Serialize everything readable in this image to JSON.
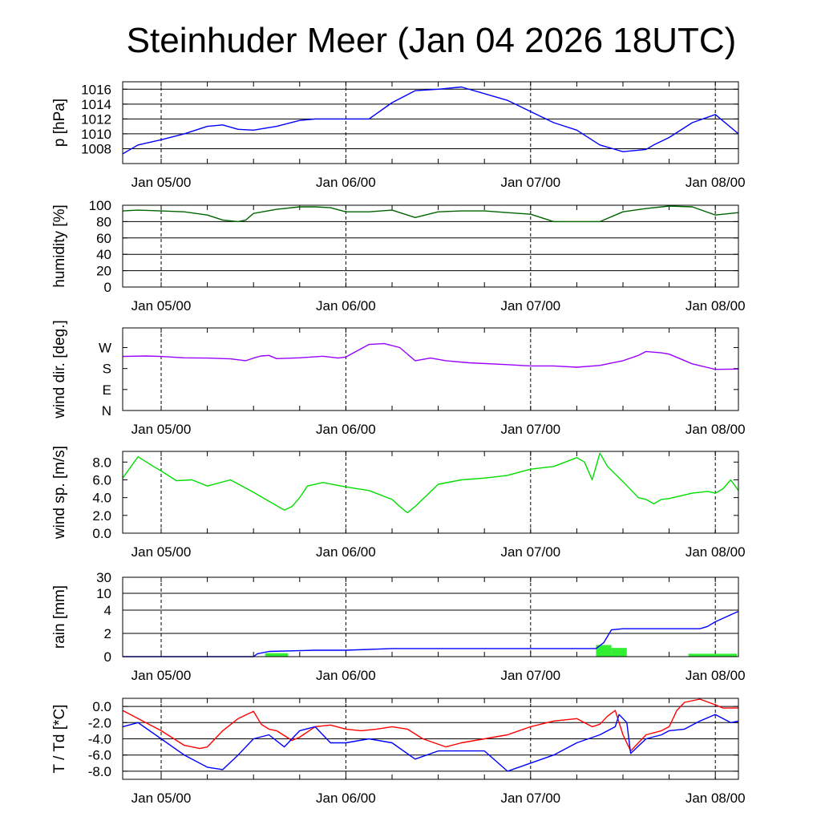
{
  "title": "Steinhuder Meer (Jan 04 2026 18UTC)",
  "x_tick_labels": [
    "Jan 05/00",
    "Jan 06/00",
    "Jan 07/00",
    "Jan 08/00"
  ],
  "chart_data": [
    {
      "type": "line",
      "ylabel": "p [hPa]",
      "x_range_hours": [
        -5,
        75
      ],
      "ylim": [
        1006,
        1017
      ],
      "yticks": [
        1008,
        1010,
        1012,
        1014,
        1016
      ],
      "ytick_labels": [
        "1008",
        "1010",
        "1012",
        "1014",
        "1016"
      ],
      "grid": true,
      "series": [
        {
          "color": "#0000ff",
          "x": [
            -5,
            -3,
            0,
            3,
            6,
            8,
            10,
            12,
            15,
            18,
            20,
            24,
            27,
            30,
            33,
            36,
            39,
            42,
            45,
            48,
            51,
            54,
            57,
            60,
            63,
            64,
            66,
            69,
            72,
            75
          ],
          "y": [
            1007.3,
            1008.5,
            1009.2,
            1010.0,
            1011.0,
            1011.2,
            1010.6,
            1010.5,
            1011.0,
            1011.8,
            1012.0,
            1012.0,
            1012.0,
            1014.2,
            1015.8,
            1016.0,
            1016.3,
            1015.4,
            1014.5,
            1013.0,
            1011.5,
            1010.5,
            1008.5,
            1007.6,
            1007.9,
            1008.5,
            1009.5,
            1011.5,
            1012.6,
            1010.0
          ]
        }
      ]
    },
    {
      "type": "line",
      "ylabel": "humidity [%]",
      "x_range_hours": [
        -5,
        75
      ],
      "ylim": [
        0,
        100
      ],
      "yticks": [
        0,
        20,
        40,
        60,
        80,
        100
      ],
      "ytick_labels": [
        "0",
        "20",
        "40",
        "60",
        "80",
        "100"
      ],
      "grid": true,
      "series": [
        {
          "color": "#006400",
          "x": [
            -5,
            -3,
            0,
            3,
            6,
            8,
            10,
            11,
            12,
            15,
            18,
            20,
            22,
            24,
            27,
            30,
            33,
            36,
            39,
            42,
            45,
            48,
            51,
            54,
            57,
            60,
            63,
            66,
            69,
            72,
            75
          ],
          "y": [
            93,
            94,
            93,
            92,
            88,
            82,
            80,
            82,
            90,
            95,
            98,
            98,
            97,
            92,
            92,
            94,
            85,
            92,
            93,
            93,
            91,
            89,
            80,
            80,
            80,
            92,
            96,
            99,
            98,
            88,
            91
          ]
        }
      ]
    },
    {
      "type": "line",
      "ylabel": "wind dir. [deg.]",
      "x_range_hours": [
        -5,
        75
      ],
      "ylim": [
        0,
        315
      ],
      "yticks": [
        0,
        80,
        160,
        240
      ],
      "ytick_labels": [
        "N",
        "E",
        "S",
        "W"
      ],
      "grid": false,
      "series": [
        {
          "color": "#9900ff",
          "x": [
            -5,
            -2,
            0,
            3,
            6,
            9,
            11,
            12,
            13,
            14,
            15,
            18,
            21,
            23,
            24,
            27,
            29,
            31,
            33,
            35,
            37,
            40,
            45,
            48,
            51,
            54,
            57,
            60,
            62,
            63,
            65,
            66,
            69,
            72,
            75
          ],
          "y": [
            206,
            208,
            206,
            201,
            200,
            197,
            190,
            200,
            208,
            210,
            198,
            201,
            207,
            200,
            204,
            252,
            255,
            240,
            190,
            200,
            190,
            182,
            175,
            170,
            170,
            165,
            172,
            190,
            210,
            225,
            220,
            215,
            178,
            157,
            158
          ]
        }
      ]
    },
    {
      "type": "line",
      "ylabel": "wind sp. [m/s]",
      "x_range_hours": [
        -5,
        75
      ],
      "ylim": [
        0,
        9.2
      ],
      "yticks": [
        0,
        2,
        4,
        6,
        8
      ],
      "ytick_labels": [
        "0.0",
        "2.0",
        "4.0",
        "6.0",
        "8.0"
      ],
      "grid": false,
      "series": [
        {
          "color": "#00dd00",
          "x": [
            -5,
            -3,
            -1,
            0,
            2,
            4,
            6,
            9,
            12,
            14,
            16,
            17,
            18,
            19,
            21,
            24,
            27,
            30,
            31,
            32,
            33,
            36,
            39,
            42,
            45,
            48,
            51,
            54,
            55,
            56,
            57,
            58,
            60,
            62,
            63,
            64,
            65,
            66,
            69,
            71,
            72,
            73,
            74,
            75
          ],
          "y": [
            6.2,
            8.6,
            7.5,
            7.0,
            5.9,
            6.0,
            5.3,
            6.0,
            4.6,
            3.6,
            2.6,
            3.0,
            4.0,
            5.3,
            5.7,
            5.2,
            4.8,
            3.8,
            3.0,
            2.3,
            3.0,
            5.5,
            6.0,
            6.2,
            6.5,
            7.2,
            7.5,
            8.5,
            8.0,
            6.0,
            9.0,
            7.5,
            5.8,
            4.0,
            3.8,
            3.3,
            3.8,
            3.9,
            4.5,
            4.7,
            4.5,
            5.0,
            6.0,
            4.8
          ]
        }
      ]
    },
    {
      "type": "line",
      "ylabel": "rain [mm]",
      "x_range_hours": [
        -5,
        75
      ],
      "yticks": [
        0,
        2,
        4,
        10,
        30
      ],
      "ytick_labels": [
        "0",
        "2",
        "4",
        "10",
        "30"
      ],
      "grid": true,
      "series": [
        {
          "color": "#0000ff",
          "x": [
            -5,
            12,
            12.5,
            14,
            20,
            24,
            30,
            40,
            50,
            56.5,
            57.5,
            58.5,
            60,
            70,
            71,
            72,
            75
          ],
          "y": [
            0,
            0,
            0.25,
            0.45,
            0.55,
            0.55,
            0.7,
            0.7,
            0.7,
            0.7,
            1.2,
            2.3,
            2.4,
            2.4,
            2.6,
            3.0,
            3.9
          ]
        }
      ],
      "bars": {
        "color": "#33ee33",
        "bins": [
          [
            13.5,
            16.5,
            0.3
          ],
          [
            56.5,
            58.5,
            1.0
          ],
          [
            58.5,
            60.5,
            0.75
          ],
          [
            68.5,
            74.8,
            0.25
          ]
        ]
      }
    },
    {
      "type": "line",
      "ylabel": "T / Td [*C]",
      "x_range_hours": [
        -5,
        75
      ],
      "ylim": [
        -9,
        1
      ],
      "yticks": [
        -8,
        -6,
        -4,
        -2,
        0
      ],
      "ytick_labels": [
        "-8.0",
        "-6.0",
        "-4.0",
        "-2.0",
        "0.0"
      ],
      "grid": true,
      "series": [
        {
          "color": "#ff0000",
          "x": [
            -5,
            -3,
            0,
            3,
            5,
            6,
            8,
            10,
            12,
            13,
            14,
            15,
            17,
            18,
            20,
            22,
            24,
            26,
            28,
            30,
            32,
            34,
            37,
            39,
            42,
            45,
            48,
            51,
            54,
            56,
            57,
            58,
            59,
            60,
            61,
            63,
            65,
            66,
            67,
            68,
            70,
            72,
            73,
            74,
            75
          ],
          "y": [
            -0.5,
            -1.5,
            -3.0,
            -4.8,
            -5.2,
            -5.0,
            -3.0,
            -1.5,
            -0.6,
            -2.2,
            -2.8,
            -3.0,
            -4.2,
            -3.8,
            -2.5,
            -2.3,
            -2.8,
            -3.0,
            -2.8,
            -2.5,
            -2.8,
            -4.0,
            -5.0,
            -4.5,
            -4.0,
            -3.5,
            -2.5,
            -1.8,
            -1.5,
            -2.5,
            -2.2,
            -1.2,
            -0.5,
            -3.5,
            -5.5,
            -3.5,
            -3.0,
            -2.5,
            -0.5,
            0.5,
            0.9,
            0.2,
            -0.2,
            -0.2,
            -0.2
          ]
        },
        {
          "color": "#0000ff",
          "x": [
            -5,
            -3,
            0,
            3,
            6,
            8,
            10,
            12,
            14,
            16,
            18,
            20,
            22,
            24,
            27,
            30,
            33,
            36,
            39,
            42,
            45,
            48,
            51,
            54,
            57,
            59,
            59.5,
            60.5,
            61,
            63,
            65,
            66,
            68,
            70,
            72,
            73,
            74,
            75
          ],
          "y": [
            -2.5,
            -2.0,
            -4.0,
            -6.0,
            -7.5,
            -7.8,
            -6.0,
            -4.0,
            -3.5,
            -5.0,
            -3.0,
            -2.5,
            -4.5,
            -4.5,
            -4.0,
            -4.5,
            -6.5,
            -5.5,
            -5.5,
            -5.5,
            -8.0,
            -7.0,
            -6.0,
            -4.5,
            -3.5,
            -2.5,
            -1.0,
            -2.0,
            -5.8,
            -4.0,
            -3.5,
            -3.0,
            -2.8,
            -1.8,
            -1.0,
            -1.5,
            -2.0,
            -1.8
          ]
        }
      ]
    }
  ]
}
